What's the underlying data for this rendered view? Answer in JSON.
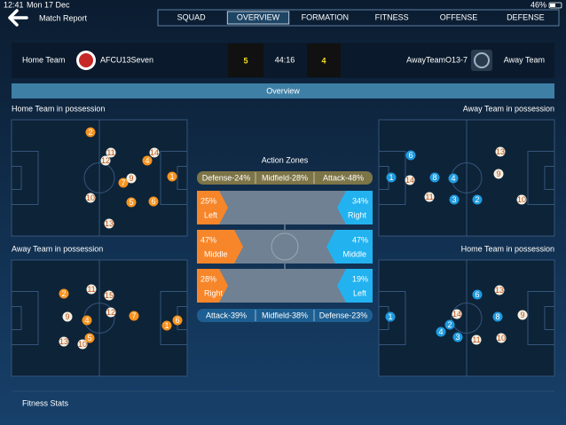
{
  "status_bar": {
    "time": "12:41",
    "date": "Mon 17 Dec",
    "battery": "46%"
  },
  "header": {
    "title": "Match Report",
    "tabs": [
      "SQUAD",
      "OVERVIEW",
      "FORMATION",
      "FITNESS",
      "OFFENSE",
      "DEFENSE"
    ]
  },
  "scoreboard": {
    "home_label": "Home Team",
    "home_name": "AFCU13Seven",
    "home_score": "5",
    "clock": "44:16",
    "away_score": "4",
    "away_name": "AwayTeamO13-7",
    "away_label": "Away Team"
  },
  "section_title": "Overview",
  "pitches": [
    {
      "label": "Home Team in possession",
      "players": [
        "2",
        "11",
        "12",
        "14",
        "4",
        "7",
        "9",
        "1",
        "10",
        "5",
        "6",
        "13"
      ]
    },
    {
      "label": "Away Team in possession",
      "players": [
        "6",
        "13",
        "1",
        "14",
        "8",
        "4",
        "9",
        "11",
        "3",
        "2",
        "10"
      ]
    },
    {
      "label": "Away Team in possession",
      "players": [
        "2",
        "11",
        "15",
        "9",
        "4",
        "12",
        "7",
        "1",
        "6",
        "5",
        "13",
        "10"
      ]
    },
    {
      "label": "Home Team in possession",
      "players": [
        "6",
        "13",
        "1",
        "14",
        "2",
        "8",
        "9",
        "4",
        "3",
        "11",
        "10"
      ]
    }
  ],
  "action_zones": {
    "title": "Action Zones",
    "top_bar": [
      "Defense-24%",
      "Midfield-28%",
      "Attack-48%"
    ],
    "rows": [
      {
        "left_pct": "25%",
        "left_zone": "Left",
        "right_pct": "34%",
        "right_zone": "Right"
      },
      {
        "left_pct": "47%",
        "left_zone": "Middle",
        "right_pct": "47%",
        "right_zone": "Middle"
      },
      {
        "left_pct": "28%",
        "left_zone": "Right",
        "right_pct": "19%",
        "right_zone": "Left"
      }
    ],
    "bottom_bar": [
      "Attack-39%",
      "Midfield-38%",
      "Defense-23%"
    ]
  },
  "footer": {
    "title": "Fitness Stats"
  }
}
